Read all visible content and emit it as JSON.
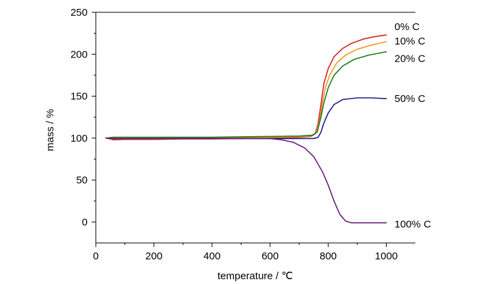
{
  "chart_data": {
    "type": "line",
    "title": "",
    "xlabel": "temperature / ℃",
    "ylabel": "mass / %",
    "xlim": [
      0,
      1100
    ],
    "ylim": [
      -25,
      250
    ],
    "x_ticks": [
      0,
      200,
      400,
      600,
      800,
      1000
    ],
    "y_ticks": [
      0,
      50,
      100,
      150,
      200,
      250
    ],
    "grid": false,
    "legend": "inline labels at right end of each line",
    "series": [
      {
        "name": "0% C",
        "color": "#d42020",
        "points": [
          [
            35,
            100
          ],
          [
            50,
            99
          ],
          [
            60,
            98
          ],
          [
            100,
            98.5
          ],
          [
            200,
            98.5
          ],
          [
            300,
            99
          ],
          [
            400,
            99
          ],
          [
            500,
            99.5
          ],
          [
            600,
            100
          ],
          [
            700,
            101
          ],
          [
            740,
            102
          ],
          [
            755,
            105
          ],
          [
            765,
            117
          ],
          [
            775,
            140
          ],
          [
            785,
            165
          ],
          [
            800,
            183
          ],
          [
            820,
            197
          ],
          [
            850,
            207
          ],
          [
            880,
            213
          ],
          [
            920,
            218
          ],
          [
            960,
            221
          ],
          [
            1000,
            223
          ]
        ]
      },
      {
        "name": "10% C",
        "color": "#f0961e",
        "points": [
          [
            35,
            100
          ],
          [
            60,
            99.5
          ],
          [
            100,
            99.5
          ],
          [
            200,
            99.5
          ],
          [
            300,
            100
          ],
          [
            400,
            100
          ],
          [
            500,
            100.5
          ],
          [
            600,
            101
          ],
          [
            700,
            101.5
          ],
          [
            740,
            102.5
          ],
          [
            758,
            106
          ],
          [
            770,
            120
          ],
          [
            780,
            142
          ],
          [
            790,
            160
          ],
          [
            805,
            175
          ],
          [
            830,
            190
          ],
          [
            860,
            199
          ],
          [
            900,
            206
          ],
          [
            950,
            211
          ],
          [
            1000,
            215
          ]
        ]
      },
      {
        "name": "20% C",
        "color": "#1a7a1a",
        "points": [
          [
            35,
            100
          ],
          [
            60,
            101
          ],
          [
            100,
            101
          ],
          [
            200,
            101
          ],
          [
            300,
            101
          ],
          [
            400,
            101
          ],
          [
            500,
            101.5
          ],
          [
            600,
            102
          ],
          [
            700,
            102.5
          ],
          [
            745,
            103.5
          ],
          [
            762,
            107
          ],
          [
            775,
            125
          ],
          [
            785,
            142
          ],
          [
            800,
            160
          ],
          [
            820,
            175
          ],
          [
            850,
            186
          ],
          [
            890,
            194
          ],
          [
            940,
            199
          ],
          [
            1000,
            203
          ]
        ]
      },
      {
        "name": "50% C",
        "color": "#1c1c8c",
        "points": [
          [
            35,
            100
          ],
          [
            60,
            99.5
          ],
          [
            100,
            99.5
          ],
          [
            200,
            99.5
          ],
          [
            300,
            99.5
          ],
          [
            400,
            99.5
          ],
          [
            500,
            99.5
          ],
          [
            600,
            99.5
          ],
          [
            700,
            99.5
          ],
          [
            750,
            99.5
          ],
          [
            765,
            101
          ],
          [
            775,
            107
          ],
          [
            785,
            118
          ],
          [
            800,
            130
          ],
          [
            820,
            140
          ],
          [
            850,
            146
          ],
          [
            900,
            148
          ],
          [
            950,
            148
          ],
          [
            1000,
            147
          ]
        ]
      },
      {
        "name": "100% C",
        "color": "#6a1a7a",
        "points": [
          [
            35,
            100
          ],
          [
            60,
            99.5
          ],
          [
            100,
            99.5
          ],
          [
            200,
            99.5
          ],
          [
            300,
            99.5
          ],
          [
            400,
            99.5
          ],
          [
            500,
            99.5
          ],
          [
            600,
            99.5
          ],
          [
            640,
            98
          ],
          [
            680,
            95
          ],
          [
            720,
            88
          ],
          [
            750,
            78
          ],
          [
            780,
            60
          ],
          [
            800,
            44
          ],
          [
            820,
            25
          ],
          [
            840,
            9
          ],
          [
            860,
            1
          ],
          [
            880,
            -1
          ],
          [
            920,
            -1
          ],
          [
            1000,
            -1
          ]
        ]
      }
    ]
  }
}
